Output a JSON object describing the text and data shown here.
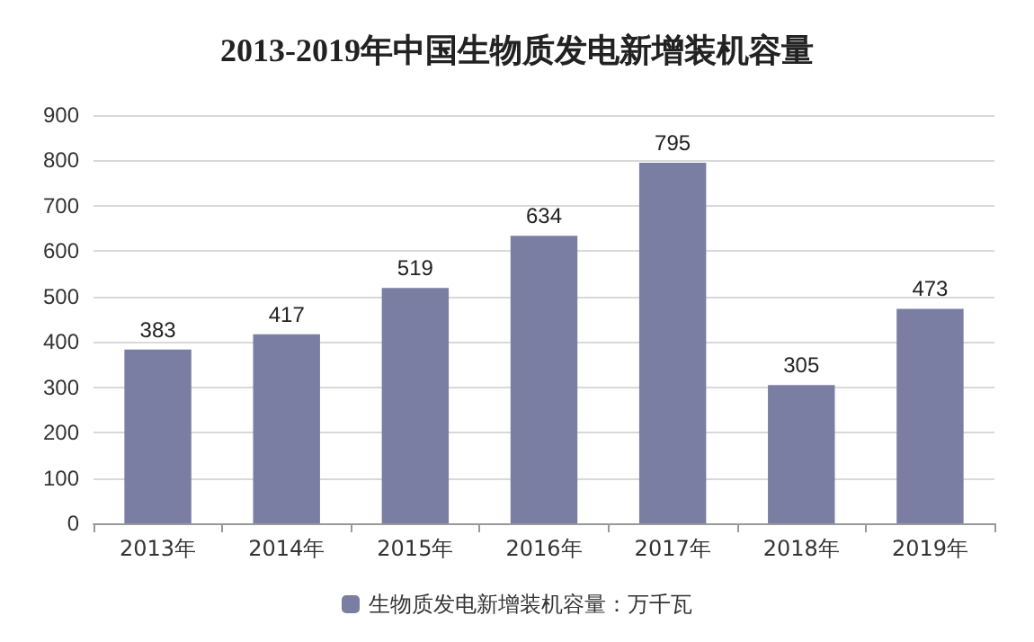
{
  "chart_data": {
    "type": "bar",
    "title": "2013-2019年中国生物质发电新增装机容量",
    "categories": [
      "2013年",
      "2014年",
      "2015年",
      "2016年",
      "2017年",
      "2018年",
      "2019年"
    ],
    "series": [
      {
        "name": "生物质发电新增装机容量：万千瓦",
        "color": "#7a7ea3",
        "values": [
          383,
          417,
          519,
          634,
          795,
          305,
          473
        ]
      }
    ],
    "ylim": [
      0,
      900
    ],
    "yticks": [
      0,
      100,
      200,
      300,
      400,
      500,
      600,
      700,
      800,
      900
    ],
    "grid": "y",
    "legend": "bottom",
    "data_labels": true
  }
}
